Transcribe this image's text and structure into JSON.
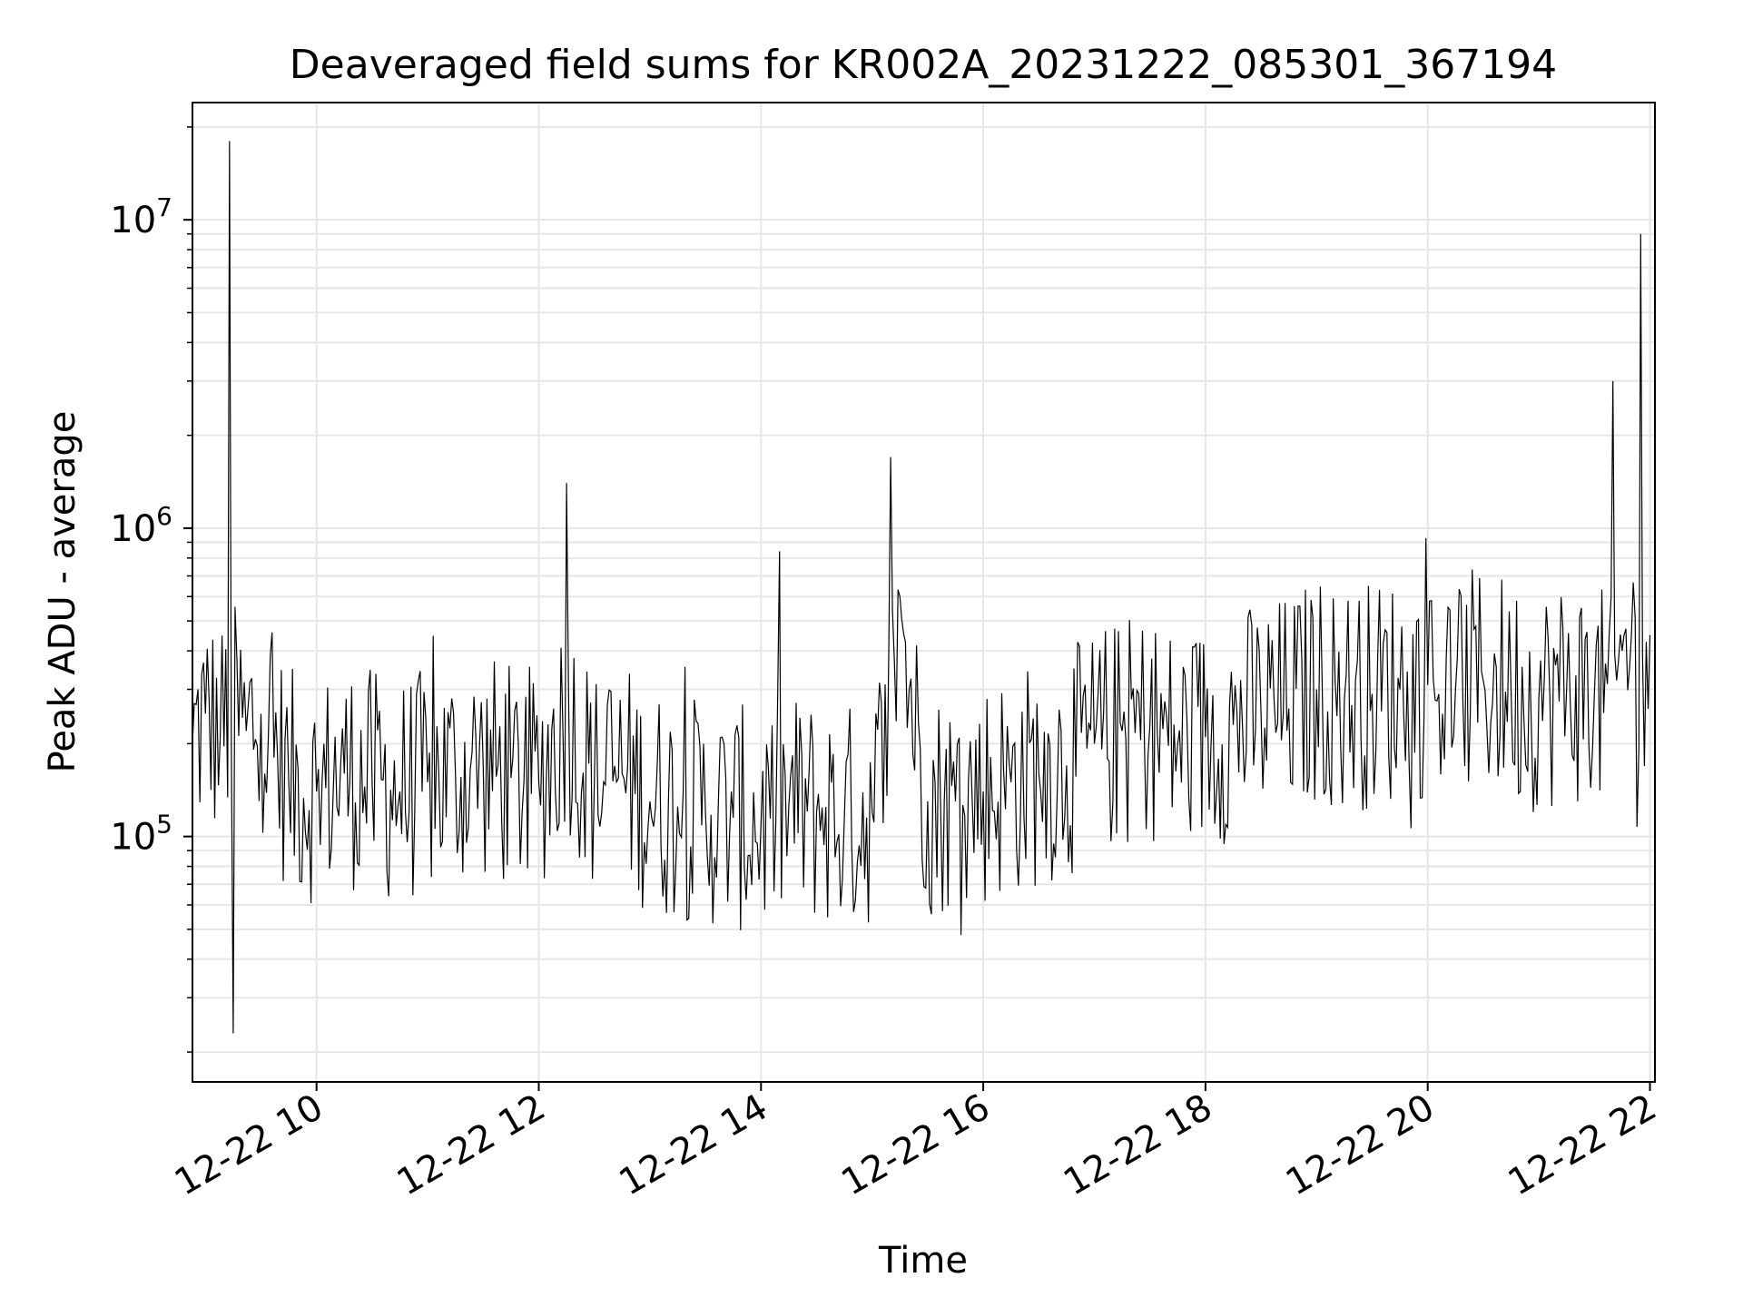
{
  "chart_data": {
    "type": "line",
    "title": "Deaveraged field sums for KR002A_20231222_085301_367194",
    "xlabel": "Time",
    "ylabel": "Peak ADU - average",
    "yscale": "log",
    "ylim": [
      16000,
      24000000
    ],
    "xlim": [
      "12-22 08:53",
      "12-22 22:00"
    ],
    "x_ticks": [
      "12-22 10",
      "12-22 12",
      "12-22 14",
      "12-22 16",
      "12-22 18",
      "12-22 20",
      "12-22 22"
    ],
    "y_ticks": [
      {
        "base": "10",
        "exp": "5",
        "value": 100000
      },
      {
        "base": "10",
        "exp": "6",
        "value": 1000000
      },
      {
        "base": "10",
        "exp": "7",
        "value": 10000000
      }
    ],
    "grid": true,
    "line_color": "#000000",
    "series": [
      {
        "x": [
          "12-22 08:53",
          "12-22 09:00",
          "12-22 09:08",
          "12-22 09:13",
          "12-22 09:15",
          "12-22 09:22",
          "12-22 09:30",
          "12-22 09:45",
          "12-22 10:00",
          "12-22 10:15",
          "12-22 10:30",
          "12-22 10:45",
          "12-22 11:00",
          "12-22 11:15",
          "12-22 11:30",
          "12-22 11:45",
          "12-22 12:00",
          "12-22 12:15",
          "12-22 12:30",
          "12-22 12:45",
          "12-22 13:00",
          "12-22 13:15",
          "12-22 13:30",
          "12-22 13:45",
          "12-22 14:00",
          "12-22 14:15",
          "12-22 14:30",
          "12-22 14:45",
          "12-22 15:00",
          "12-22 15:10",
          "12-22 15:15",
          "12-22 15:20",
          "12-22 15:30",
          "12-22 15:45",
          "12-22 16:00",
          "12-22 16:15",
          "12-22 16:30",
          "12-22 16:45",
          "12-22 17:00",
          "12-22 17:15",
          "12-22 17:30",
          "12-22 17:45",
          "12-22 18:00",
          "12-22 18:15",
          "12-22 18:30",
          "12-22 18:45",
          "12-22 19:00",
          "12-22 19:15",
          "12-22 19:30",
          "12-22 19:45",
          "12-22 20:00",
          "12-22 20:15",
          "12-22 20:30",
          "12-22 20:45",
          "12-22 21:00",
          "12-22 21:15",
          "12-22 21:30",
          "12-22 21:40",
          "12-22 21:45",
          "12-22 21:50",
          "12-22 21:55",
          "12-22 22:00"
        ],
        "y": [
          200000,
          250000,
          210000,
          18000000,
          23000,
          220000,
          250000,
          150000,
          140000,
          160000,
          150000,
          140000,
          150000,
          160000,
          170000,
          155000,
          150000,
          1400000,
          150000,
          160000,
          130000,
          125000,
          120000,
          115000,
          110000,
          125000,
          120000,
          115000,
          120000,
          1700000,
          600000,
          300000,
          130000,
          130000,
          140000,
          150000,
          160000,
          170000,
          200000,
          220000,
          230000,
          200000,
          210000,
          230000,
          250000,
          260000,
          300000,
          280000,
          290000,
          300000,
          310000,
          300000,
          320000,
          300000,
          280000,
          300000,
          290000,
          3000000,
          400000,
          450000,
          9000000,
          450000
        ]
      }
    ]
  }
}
